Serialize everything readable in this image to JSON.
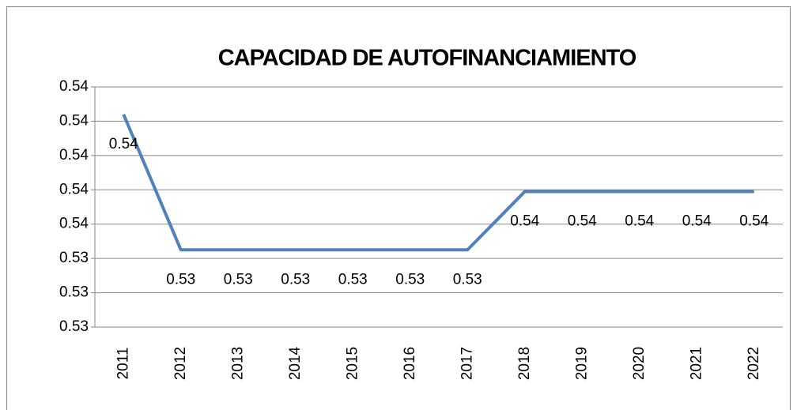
{
  "chart_data": {
    "type": "line",
    "title": "CAPACIDAD DE AUTOFINANCIAMIENTO",
    "categories": [
      "2011",
      "2012",
      "2013",
      "2014",
      "2015",
      "2016",
      "2017",
      "2018",
      "2019",
      "2020",
      "2021",
      "2022"
    ],
    "values": [
      0.5424,
      0.5345,
      0.5345,
      0.5345,
      0.5345,
      0.5345,
      0.5345,
      0.5379,
      0.5379,
      0.5379,
      0.5379,
      0.5379
    ],
    "value_labels": [
      "0.54",
      "0.53",
      "0.53",
      "0.53",
      "0.53",
      "0.53",
      "0.53",
      "0.54",
      "0.54",
      "0.54",
      "0.54",
      "0.54"
    ],
    "color": "#4f81bd",
    "ylim": [
      0.53,
      0.544
    ],
    "yticks": [
      {
        "value": 0.53,
        "label": "0.53"
      },
      {
        "value": 0.532,
        "label": "0.53"
      },
      {
        "value": 0.534,
        "label": "0.53"
      },
      {
        "value": 0.536,
        "label": "0.54"
      },
      {
        "value": 0.538,
        "label": "0.54"
      },
      {
        "value": 0.54,
        "label": "0.54"
      },
      {
        "value": 0.542,
        "label": "0.54"
      },
      {
        "value": 0.544,
        "label": "0.54"
      }
    ],
    "grid": true
  }
}
